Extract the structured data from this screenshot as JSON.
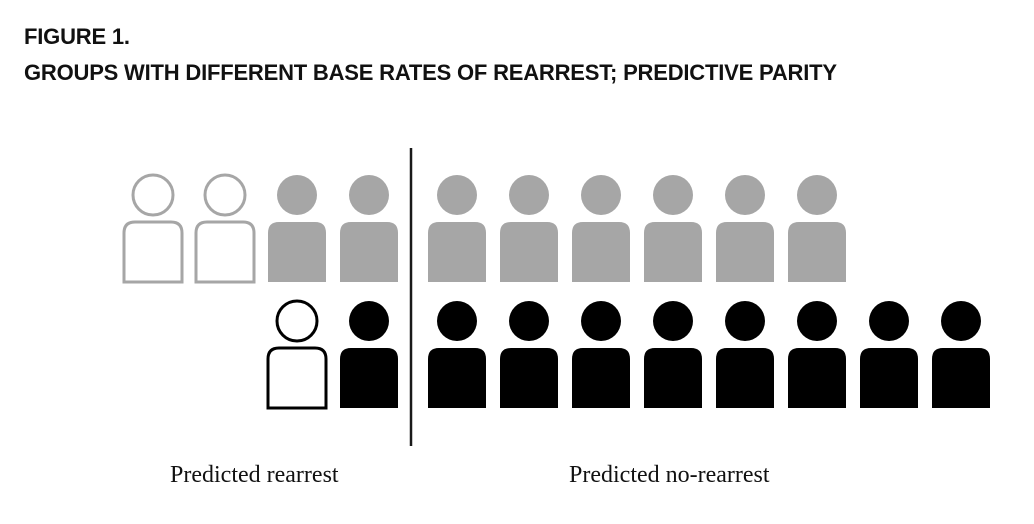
{
  "figure": {
    "label": "FIGURE 1.",
    "title": "GROUPS WITH DIFFERENT BASE RATES OF REARREST; PREDICTIVE PARITY"
  },
  "captions": {
    "left": "Predicted rearrest",
    "right": "Predicted no-rearrest"
  },
  "colors": {
    "group_a": "#a6a6a6",
    "group_b": "#000000",
    "divider": "#1a1a1a",
    "background": "#ffffff"
  },
  "groups": [
    {
      "id": "group-a",
      "color": "#a6a6a6",
      "predicted_rearrest": {
        "total": 4,
        "not_rearrested": 2,
        "rearrested": 2
      },
      "predicted_no_rearrest": {
        "total": 6,
        "not_rearrested": 0,
        "rearrested": 6
      }
    },
    {
      "id": "group-b",
      "color": "#000000",
      "predicted_rearrest": {
        "total": 2,
        "not_rearrested": 1,
        "rearrested": 1
      },
      "predicted_no_rearrest": {
        "total": 8,
        "not_rearrested": 0,
        "rearrested": 8
      }
    }
  ],
  "legend_icons": {
    "outline": "person-outline-icon",
    "filled": "person-filled-icon"
  }
}
